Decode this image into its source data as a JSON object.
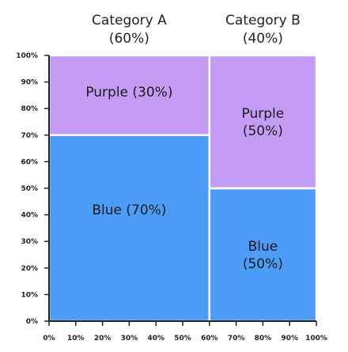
{
  "chart_data": {
    "type": "marimekko",
    "title": "",
    "xlabel": "",
    "ylabel": "",
    "xlim": [
      0,
      100
    ],
    "ylim": [
      0,
      100
    ],
    "x_ticks": [
      "0%",
      "10%",
      "20%",
      "30%",
      "40%",
      "50%",
      "60%",
      "70%",
      "80%",
      "90%",
      "100%"
    ],
    "y_ticks": [
      "0%",
      "10%",
      "20%",
      "30%",
      "40%",
      "50%",
      "60%",
      "70%",
      "80%",
      "90%",
      "100%"
    ],
    "categories": [
      {
        "name": "Category A",
        "share_label": "(60%)",
        "width": 60
      },
      {
        "name": "Category B",
        "share_label": "(40%)",
        "width": 40
      }
    ],
    "series": [
      {
        "name": "Blue",
        "color": "#4d9cf8",
        "values": [
          70,
          50
        ],
        "labels": [
          "Blue (70%)",
          "Blue|(50%)"
        ]
      },
      {
        "name": "Purple",
        "color": "#c59cf5",
        "values": [
          30,
          50
        ],
        "labels": [
          "Purple (30%)",
          "Purple|(50%)"
        ]
      }
    ]
  }
}
